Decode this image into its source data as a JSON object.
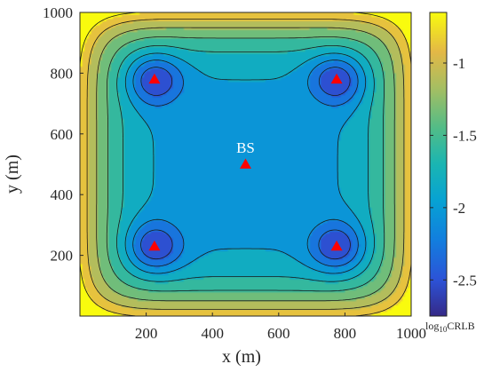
{
  "chart_data": {
    "type": "heatmap",
    "title": "",
    "xlabel": "x (m)",
    "ylabel": "y (m)",
    "xlim": [
      0,
      1000
    ],
    "ylim": [
      0,
      1000
    ],
    "x_ticks": [
      "200",
      "400",
      "600",
      "800",
      "1000"
    ],
    "y_ticks": [
      "200",
      "400",
      "600",
      "800",
      "1000"
    ],
    "colorbar": {
      "label_main": "log",
      "label_sub": "10",
      "label_tail": "CRLB",
      "range": [
        -2.75,
        -0.65
      ],
      "ticks": [
        "-1",
        "-1.5",
        "-2",
        "-2.5"
      ],
      "colormap": "parula"
    },
    "anchors": [
      {
        "x": 225,
        "y": 780
      },
      {
        "x": 775,
        "y": 780
      },
      {
        "x": 225,
        "y": 230
      },
      {
        "x": 775,
        "y": 230
      }
    ],
    "anchor_color": "#ff0000",
    "base_station": {
      "label": "BS",
      "x": 500,
      "y": 500
    }
  }
}
